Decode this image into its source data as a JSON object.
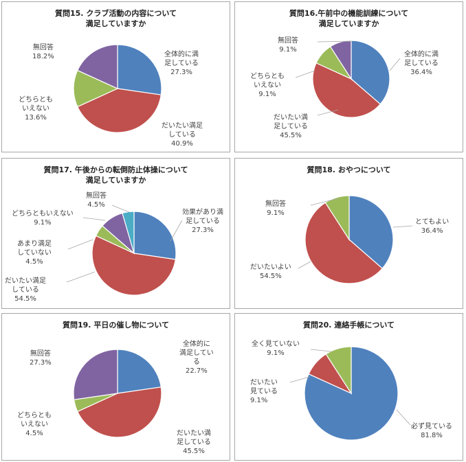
{
  "colors": {
    "blue": "#4f81bd",
    "red": "#c0504d",
    "green": "#9bbb59",
    "purple": "#8064a2",
    "cyan": "#4bacc6"
  },
  "chart_data": [
    {
      "type": "pie",
      "title": "質問15. クラブ活動の内容について\n満足していますか",
      "slices": [
        {
          "label": "全体的に満\n足している",
          "value": 27.3,
          "display": "27.3%",
          "color": "#4f81bd"
        },
        {
          "label": "だいたい満足\nしている",
          "value": 40.9,
          "display": "40.9%",
          "color": "#c0504d"
        },
        {
          "label": "どちらとも\nいえない",
          "value": 13.6,
          "display": "13.6%",
          "color": "#9bbb59"
        },
        {
          "label": "無回答",
          "value": 18.2,
          "display": "18.2%",
          "color": "#8064a2"
        }
      ]
    },
    {
      "type": "pie",
      "title": "質問16.午前中の機能訓練について\n満足していますか",
      "slices": [
        {
          "label": "全体的に満\n足している",
          "value": 36.4,
          "display": "36.4%",
          "color": "#4f81bd"
        },
        {
          "label": "だいたい満\n足している",
          "value": 45.5,
          "display": "45.5%",
          "color": "#c0504d"
        },
        {
          "label": "どちらとも\nいえない",
          "value": 9.1,
          "display": "9.1%",
          "color": "#9bbb59"
        },
        {
          "label": "無回答",
          "value": 9.1,
          "display": "9.1%",
          "color": "#8064a2"
        }
      ]
    },
    {
      "type": "pie",
      "title": "質問17. 午後からの転倒防止体操について\n満足していますか",
      "slices": [
        {
          "label": "効果があり満\n足している",
          "value": 27.3,
          "display": "27.3%",
          "color": "#4f81bd"
        },
        {
          "label": "だいたい満足\nしている",
          "value": 54.5,
          "display": "54.5%",
          "color": "#c0504d"
        },
        {
          "label": "あまり満足\nしていない",
          "value": 4.5,
          "display": "4.5%",
          "color": "#9bbb59"
        },
        {
          "label": "どちらともいえない",
          "value": 9.1,
          "display": "9.1%",
          "color": "#8064a2"
        },
        {
          "label": "無回答",
          "value": 4.5,
          "display": "4.5%",
          "color": "#4bacc6"
        }
      ]
    },
    {
      "type": "pie",
      "title": "質問18. おやつについて",
      "slices": [
        {
          "label": "とてもよい",
          "value": 36.4,
          "display": "36.4%",
          "color": "#4f81bd"
        },
        {
          "label": "だいたいよい",
          "value": 54.5,
          "display": "54.5%",
          "color": "#c0504d"
        },
        {
          "label": "無回答",
          "value": 9.1,
          "display": "9.1%",
          "color": "#9bbb59"
        }
      ]
    },
    {
      "type": "pie",
      "title": "質問19. 平日の催し物について",
      "slices": [
        {
          "label": "全体的に\n満足してい\nる",
          "value": 22.7,
          "display": "22.7%",
          "color": "#4f81bd"
        },
        {
          "label": "だいたい満\n足している",
          "value": 45.5,
          "display": "45.5%",
          "color": "#c0504d"
        },
        {
          "label": "どちらとも\nいえない",
          "value": 4.5,
          "display": "4.5%",
          "color": "#9bbb59"
        },
        {
          "label": "無回答",
          "value": 27.3,
          "display": "27.3%",
          "color": "#8064a2"
        }
      ]
    },
    {
      "type": "pie",
      "title": "質問20. 連絡手帳について",
      "slices": [
        {
          "label": "必ず見ている",
          "value": 81.8,
          "display": "81.8%",
          "color": "#4f81bd"
        },
        {
          "label": "だいたい\n見ている",
          "value": 9.1,
          "display": "9.1%",
          "color": "#c0504d"
        },
        {
          "label": "全く見ていない",
          "value": 9.1,
          "display": "9.1%",
          "color": "#9bbb59"
        }
      ]
    }
  ]
}
